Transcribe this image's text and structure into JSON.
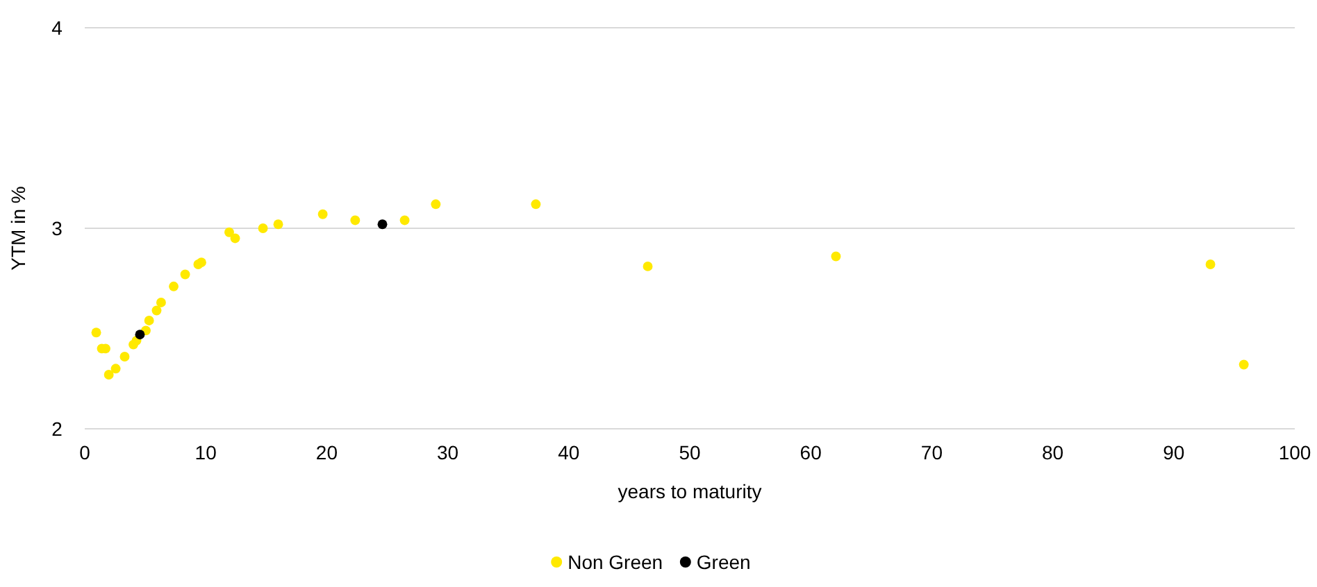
{
  "chart_data": {
    "type": "scatter",
    "xlabel": "years to maturity",
    "ylabel": "YTM in %",
    "xlim": [
      0,
      100
    ],
    "xticks": [
      0,
      10,
      20,
      30,
      40,
      50,
      60,
      70,
      80,
      90,
      100
    ],
    "ylim": [
      2,
      4
    ],
    "yticks": [
      2,
      3,
      4
    ],
    "grid": "y",
    "legend": "bottom",
    "marker": "circle",
    "series": [
      {
        "name": "Non Green",
        "color": "#ffe900",
        "x": [
          0.95,
          1.41,
          1.72,
          1.99,
          2.56,
          3.3,
          4.02,
          4.28,
          5.05,
          5.32,
          5.94,
          6.31,
          7.35,
          8.3,
          9.38,
          9.64,
          11.94,
          12.43,
          14.73,
          15.99,
          19.67,
          22.35,
          26.44,
          29.01,
          37.28,
          46.53,
          62.08,
          93.03,
          95.79
        ],
        "values": [
          2.48,
          2.4,
          2.4,
          2.27,
          2.3,
          2.36,
          2.42,
          2.44,
          2.49,
          2.54,
          2.59,
          2.63,
          2.71,
          2.77,
          2.82,
          2.83,
          2.98,
          2.95,
          3.0,
          3.02,
          3.07,
          3.04,
          3.04,
          3.12,
          3.12,
          2.81,
          2.86,
          2.82,
          2.32
        ]
      },
      {
        "name": "Green",
        "color": "#000000",
        "x": [
          4.56,
          24.6
        ],
        "values": [
          2.47,
          3.02
        ]
      }
    ]
  }
}
